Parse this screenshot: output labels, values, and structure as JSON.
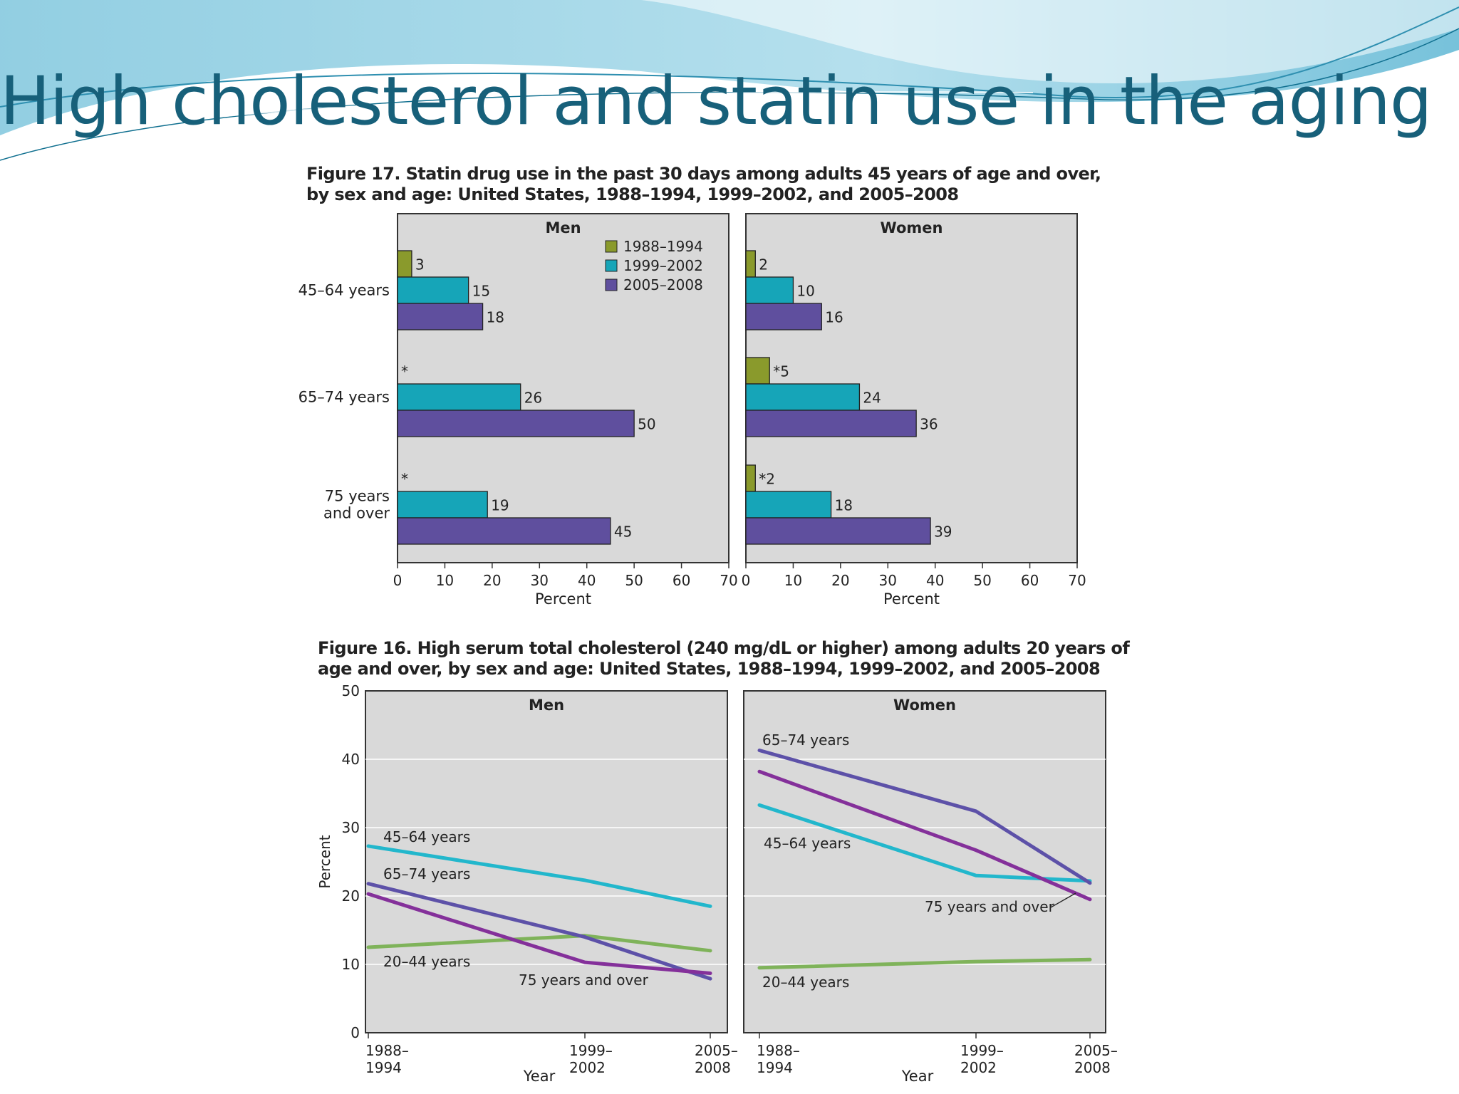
{
  "slide": {
    "title": "High cholesterol and statin use in the aging"
  },
  "colors": {
    "title": "#17607a",
    "panel_bg": "#d9d9d9",
    "c1988": "#8a9a2c",
    "c1999": "#16a5b8",
    "c2005": "#5f4f9e",
    "line_20_44": "#7fb35a",
    "line_45_64": "#22b7cc",
    "line_65_74": "#5d51a8",
    "line_75": "#84309a"
  },
  "chart_data": [
    {
      "type": "bar",
      "orientation": "horizontal",
      "title": "Figure 17. Statin drug use in the past 30 days among adults 45 years of age and over, by sex and age: United States, 1988–1994, 1999–2002, and 2005–2008",
      "xlabel": "Percent",
      "xlim": [
        0,
        70
      ],
      "xticks": [
        "0",
        "10",
        "20",
        "30",
        "40",
        "50",
        "60",
        "70"
      ],
      "categories": [
        "45–64 years",
        "65–74 years",
        "75 years and over"
      ],
      "legend": {
        "placement": "top-right",
        "entries": [
          "1988–1994",
          "1999–2002",
          "2005–2008"
        ]
      },
      "panels": [
        {
          "name": "Men",
          "series": [
            {
              "name": "1988–1994",
              "values": [
                3,
                null,
                null
              ],
              "labels": [
                "3",
                "*",
                "*"
              ]
            },
            {
              "name": "1999–2002",
              "values": [
                15,
                26,
                19
              ],
              "labels": [
                "15",
                "26",
                "19"
              ]
            },
            {
              "name": "2005–2008",
              "values": [
                18,
                50,
                45
              ],
              "labels": [
                "18",
                "50",
                "45"
              ]
            }
          ]
        },
        {
          "name": "Women",
          "series": [
            {
              "name": "1988–1994",
              "values": [
                2,
                5,
                2
              ],
              "labels": [
                "2",
                "*5",
                "*2"
              ]
            },
            {
              "name": "1999–2002",
              "values": [
                10,
                24,
                18
              ],
              "labels": [
                "10",
                "24",
                "18"
              ]
            },
            {
              "name": "2005–2008",
              "values": [
                16,
                36,
                39
              ],
              "labels": [
                "16",
                "36",
                "39"
              ]
            }
          ]
        }
      ]
    },
    {
      "type": "line",
      "title": "Figure 16. High serum total cholesterol (240 mg/dL or higher) among adults 20 years of age and over, by sex and age: United States, 1988–1994, 1999–2002, and 2005–2008",
      "xlabel": "Year",
      "ylabel": "Percent",
      "ylim": [
        0,
        50
      ],
      "yticks": [
        "0",
        "10",
        "20",
        "30",
        "40",
        "50"
      ],
      "x": [
        [
          "1988–",
          "1994"
        ],
        [
          "1999–",
          "2002"
        ],
        [
          "2005–",
          "2008"
        ]
      ],
      "panels": [
        {
          "name": "Men",
          "series": [
            {
              "name": "20–44 years",
              "values": [
                12.5,
                14.2,
                12
              ]
            },
            {
              "name": "45–64 years",
              "values": [
                27.3,
                22.3,
                18.5
              ]
            },
            {
              "name": "65–74 years",
              "values": [
                21.8,
                14,
                7.9
              ]
            },
            {
              "name": "75 years and over",
              "values": [
                20.3,
                10.3,
                8.7
              ]
            }
          ]
        },
        {
          "name": "Women",
          "series": [
            {
              "name": "20–44 years",
              "values": [
                9.5,
                10.4,
                10.7
              ]
            },
            {
              "name": "45–64 years",
              "values": [
                33.3,
                23,
                22.2
              ]
            },
            {
              "name": "65–74 years",
              "values": [
                41.3,
                32.4,
                21.9
              ]
            },
            {
              "name": "75 years and over",
              "values": [
                38.2,
                26.7,
                19.5
              ]
            }
          ]
        }
      ]
    }
  ]
}
